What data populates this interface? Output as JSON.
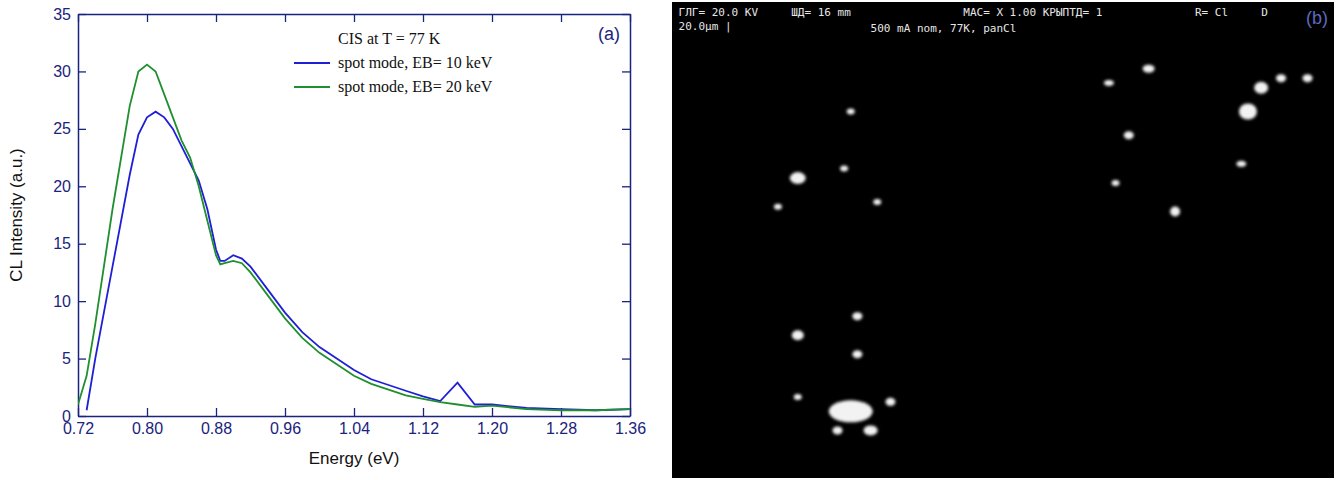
{
  "chart_data": {
    "type": "line",
    "x_label": "Energy (eV)",
    "y_label": "CL Intensity (a.u.)",
    "legend_title": "CIS at T = 77 K",
    "annotations": [
      {
        "text": "(a)"
      }
    ],
    "x": [
      0.72,
      0.73,
      0.74,
      0.76,
      0.78,
      0.79,
      0.8,
      0.81,
      0.82,
      0.83,
      0.84,
      0.85,
      0.86,
      0.87,
      0.88,
      0.885,
      0.89,
      0.9,
      0.91,
      0.92,
      0.94,
      0.96,
      0.98,
      1.0,
      1.02,
      1.04,
      1.06,
      1.08,
      1.1,
      1.12,
      1.14,
      1.16,
      1.18,
      1.2,
      1.24,
      1.28,
      1.32,
      1.36
    ],
    "series": [
      {
        "name": "spot mode, EB= 10 keV",
        "color": "#1f1fd6",
        "line_style": "solid",
        "values": [
          null,
          0.5,
          5,
          13,
          21,
          24.5,
          26,
          26.5,
          26,
          25,
          23.5,
          22,
          20.5,
          18,
          14.5,
          13.5,
          13.5,
          14,
          13.7,
          13,
          11,
          9,
          7.3,
          6,
          5,
          4,
          3.2,
          2.7,
          2.2,
          1.7,
          1.3,
          2.9,
          1.0,
          1.0,
          0.7,
          0.6,
          0.5,
          0.6
        ]
      },
      {
        "name": "spot mode, EB= 20 keV",
        "color": "#1f8f2f",
        "line_style": "solid",
        "values": [
          1,
          3.5,
          8,
          18,
          27,
          30,
          30.6,
          30,
          28,
          26,
          24,
          22.5,
          20,
          17,
          14,
          13.2,
          13.3,
          13.5,
          13.3,
          12.5,
          10.5,
          8.5,
          6.8,
          5.5,
          4.5,
          3.5,
          2.8,
          2.3,
          1.8,
          1.5,
          1.2,
          1.0,
          0.8,
          0.9,
          0.6,
          0.5,
          0.5,
          0.6
        ]
      }
    ],
    "xlim": [
      0.72,
      1.36
    ],
    "xticks": [
      0.72,
      {
        "value": 0.8,
        "label": "0.80"
      },
      0.88,
      0.96,
      1.04,
      1.12,
      {
        "value": 1.2,
        "label": "1.20"
      },
      1.28,
      1.36
    ],
    "ylim": [
      0,
      35
    ],
    "yticks": [
      0,
      5,
      10,
      15,
      20,
      25,
      30,
      35
    ],
    "grid": false,
    "legend": "upper right"
  },
  "image": {
    "panel_label": "(b)",
    "header": [
      "ГЛГ= 20.0 KV",
      "ШД= 16 mm",
      "MAC= X 1.00 K",
      "РЫПТД= 1",
      "R= Cl",
      "D"
    ],
    "scale_bar": "20.0µm |",
    "caption": "500 mA nom, 77K, panCl"
  }
}
